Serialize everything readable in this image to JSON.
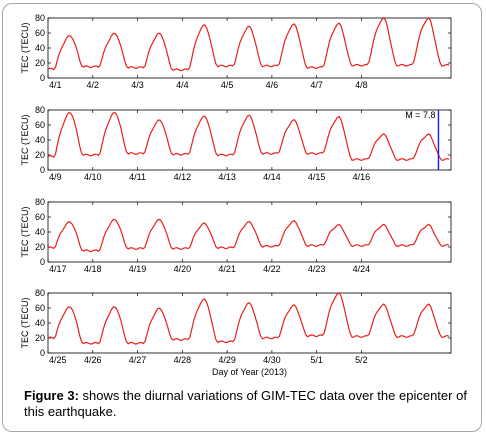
{
  "caption": {
    "label": "Figure 3:",
    "text": " shows the diurnal variations of GIM-TEC data over the epicenter of this earthquake."
  },
  "colors": {
    "series": "#e8201c",
    "marker": "#1a1aff",
    "axis": "#000000"
  },
  "chart_data": [
    {
      "type": "line",
      "ylabel": "TEC (TECU)",
      "xlabel": "",
      "ylim": [
        0,
        80
      ],
      "yticks": [
        0,
        20,
        40,
        60,
        80
      ],
      "x_tick_labels": [
        "4/1",
        "4/2",
        "4/3",
        "4/4",
        "4/5",
        "4/6",
        "4/7",
        "4/8"
      ],
      "grid": false,
      "series": [
        {
          "day_peaks": [
            56,
            59,
            59,
            70,
            68,
            71,
            72,
            79
          ],
          "day_troughs": [
            12,
            15,
            14,
            11,
            16,
            16,
            14,
            17
          ]
        }
      ]
    },
    {
      "type": "line",
      "ylabel": "TEC (TECU)",
      "xlabel": "",
      "ylim": [
        0,
        80
      ],
      "yticks": [
        0,
        20,
        40,
        60,
        80
      ],
      "x_tick_labels": [
        "4/9",
        "4/10",
        "4/11",
        "4/12",
        "4/13",
        "4/14",
        "4/15",
        "4/16"
      ],
      "grid": false,
      "annotation": {
        "text": "M = 7.8"
      },
      "event_day_position": 8.72,
      "series": [
        {
          "day_peaks": [
            76,
            76,
            66,
            71,
            72,
            66,
            70,
            47
          ],
          "day_troughs": [
            18,
            20,
            22,
            21,
            20,
            22,
            22,
            14
          ]
        }
      ]
    },
    {
      "type": "line",
      "ylabel": "TEC (TECU)",
      "xlabel": "",
      "ylim": [
        0,
        80
      ],
      "yticks": [
        0,
        20,
        40,
        60,
        80
      ],
      "x_tick_labels": [
        "4/17",
        "4/18",
        "4/19",
        "4/20",
        "4/21",
        "4/22",
        "4/23",
        "4/24"
      ],
      "grid": false,
      "series": [
        {
          "day_peaks": [
            53,
            56,
            56,
            51,
            53,
            54,
            49,
            49
          ],
          "day_troughs": [
            19,
            15,
            18,
            18,
            19,
            21,
            22,
            22
          ]
        }
      ]
    },
    {
      "type": "line",
      "ylabel": "TEC (TECU)",
      "xlabel": "Day of Year (2013)",
      "ylim": [
        0,
        80
      ],
      "yticks": [
        0,
        20,
        40,
        60,
        80
      ],
      "x_tick_labels": [
        "4/25",
        "4/26",
        "4/27",
        "4/28",
        "4/29",
        "4/30",
        "5/1",
        "5/2"
      ],
      "grid": false,
      "series": [
        {
          "day_peaks": [
            61,
            61,
            59,
            71,
            66,
            63,
            79,
            64
          ],
          "day_troughs": [
            20,
            13,
            13,
            18,
            15,
            20,
            23,
            22
          ]
        }
      ]
    }
  ]
}
